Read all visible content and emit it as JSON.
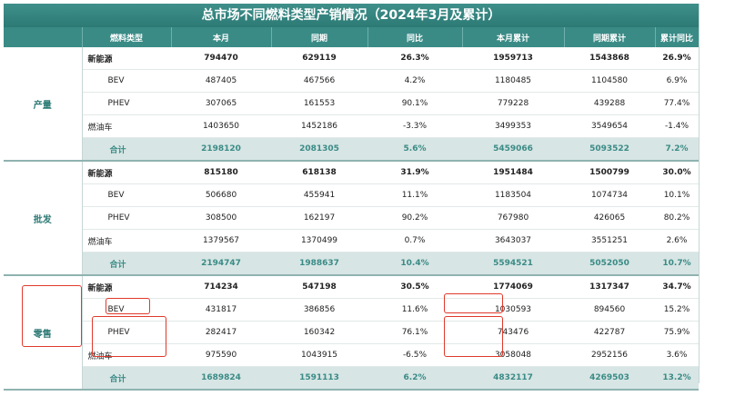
{
  "title": "总市场不同燃料类型产销情况（2024年3月及累计）",
  "columns": [
    "燃料类型",
    "本月",
    "同期",
    "同比",
    "本月累计",
    "同期累计",
    "累计同比"
  ],
  "sections": [
    {
      "name": "产量",
      "rows": [
        {
          "label": "新能源",
          "kind": "bold",
          "values": [
            "794470",
            "629119",
            "26.3%",
            "1959713",
            "1543868",
            "26.9%"
          ]
        },
        {
          "label": "BEV",
          "kind": "sub",
          "values": [
            "487405",
            "467566",
            "4.2%",
            "1180485",
            "1104580",
            "6.9%"
          ]
        },
        {
          "label": "PHEV",
          "kind": "sub",
          "values": [
            "307065",
            "161553",
            "90.1%",
            "779228",
            "439288",
            "77.4%"
          ]
        },
        {
          "label": "燃油车",
          "kind": "plain",
          "values": [
            "1403650",
            "1452186",
            "-3.3%",
            "3499353",
            "3549654",
            "-1.4%"
          ]
        },
        {
          "label": "合计",
          "kind": "total",
          "values": [
            "2198120",
            "2081305",
            "5.6%",
            "5459066",
            "5093522",
            "7.2%"
          ]
        }
      ]
    },
    {
      "name": "批发",
      "rows": [
        {
          "label": "新能源",
          "kind": "bold",
          "values": [
            "815180",
            "618138",
            "31.9%",
            "1951484",
            "1500799",
            "30.0%"
          ]
        },
        {
          "label": "BEV",
          "kind": "sub",
          "values": [
            "506680",
            "455941",
            "11.1%",
            "1183504",
            "1074734",
            "10.1%"
          ]
        },
        {
          "label": "PHEV",
          "kind": "sub",
          "values": [
            "308500",
            "162197",
            "90.2%",
            "767980",
            "426065",
            "80.2%"
          ]
        },
        {
          "label": "燃油车",
          "kind": "plain",
          "values": [
            "1379567",
            "1370499",
            "0.7%",
            "3643037",
            "3551251",
            "2.6%"
          ]
        },
        {
          "label": "合计",
          "kind": "total",
          "values": [
            "2194747",
            "1988637",
            "10.4%",
            "5594521",
            "5052050",
            "10.7%"
          ]
        }
      ]
    },
    {
      "name": "零售",
      "rows": [
        {
          "label": "新能源",
          "kind": "bold",
          "values": [
            "714234",
            "547198",
            "30.5%",
            "1774069",
            "1317347",
            "34.7%"
          ]
        },
        {
          "label": "BEV",
          "kind": "sub",
          "values": [
            "431817",
            "386856",
            "11.6%",
            "1030593",
            "894560",
            "15.2%"
          ]
        },
        {
          "label": "PHEV",
          "kind": "sub",
          "values": [
            "282417",
            "160342",
            "76.1%",
            "743476",
            "422787",
            "75.9%"
          ]
        },
        {
          "label": "燃油车",
          "kind": "plain",
          "values": [
            "975590",
            "1043915",
            "-6.5%",
            "3058048",
            "2952156",
            "3.6%"
          ]
        },
        {
          "label": "合计",
          "kind": "total",
          "values": [
            "1689824",
            "1591113",
            "6.2%",
            "4832117",
            "4269503",
            "13.2%"
          ]
        }
      ]
    }
  ]
}
